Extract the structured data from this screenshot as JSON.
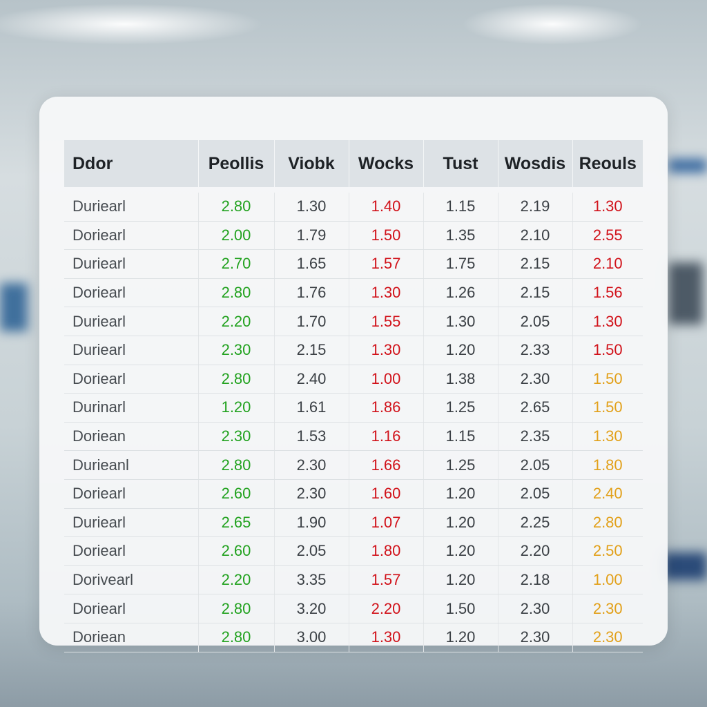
{
  "table": {
    "columns": [
      "Ddor",
      "Peollis",
      "Viobk",
      "Wocks",
      "Tust",
      "Wosdis",
      "Reouls"
    ],
    "rows": [
      [
        "Duriearl",
        "2.80",
        "1.30",
        "1.40",
        "1.15",
        "2.19",
        "1.30"
      ],
      [
        "Doriearl",
        "2.00",
        "1.79",
        "1.50",
        "1.35",
        "2.10",
        "2.55"
      ],
      [
        "Duriearl",
        "2.70",
        "1.65",
        "1.57",
        "1.75",
        "2.15",
        "2.10"
      ],
      [
        "Doriearl",
        "2.80",
        "1.76",
        "1.30",
        "1.26",
        "2.15",
        "1.56"
      ],
      [
        "Duriearl",
        "2.20",
        "1.70",
        "1.55",
        "1.30",
        "2.05",
        "1.30"
      ],
      [
        "Duriearl",
        "2.30",
        "2.15",
        "1.30",
        "1.20",
        "2.33",
        "1.50"
      ],
      [
        "Doriearl",
        "2.80",
        "2.40",
        "1.00",
        "1.38",
        "2.30",
        "1.50"
      ],
      [
        "Durinarl",
        "1.20",
        "1.61",
        "1.86",
        "1.25",
        "2.65",
        "1.50"
      ],
      [
        "Doriean",
        "2.30",
        "1.53",
        "1.16",
        "1.15",
        "2.35",
        "1.30"
      ],
      [
        "Durieanl",
        "2.80",
        "2.30",
        "1.66",
        "1.25",
        "2.05",
        "1.80"
      ],
      [
        "Doriearl",
        "2.60",
        "2.30",
        "1.60",
        "1.20",
        "2.05",
        "2.40"
      ],
      [
        "Duriearl",
        "2.65",
        "1.90",
        "1.07",
        "1.20",
        "2.25",
        "2.80"
      ],
      [
        "Doriearl",
        "2.60",
        "2.05",
        "1.80",
        "1.20",
        "2.20",
        "2.50"
      ],
      [
        "Dorivearl",
        "2.20",
        "3.35",
        "1.57",
        "1.20",
        "2.18",
        "1.00"
      ],
      [
        "Doriearl",
        "2.80",
        "3.20",
        "2.20",
        "1.50",
        "2.30",
        "2.30"
      ],
      [
        "Doriean",
        "2.80",
        "3.00",
        "1.30",
        "1.20",
        "2.30",
        "2.30"
      ]
    ]
  }
}
